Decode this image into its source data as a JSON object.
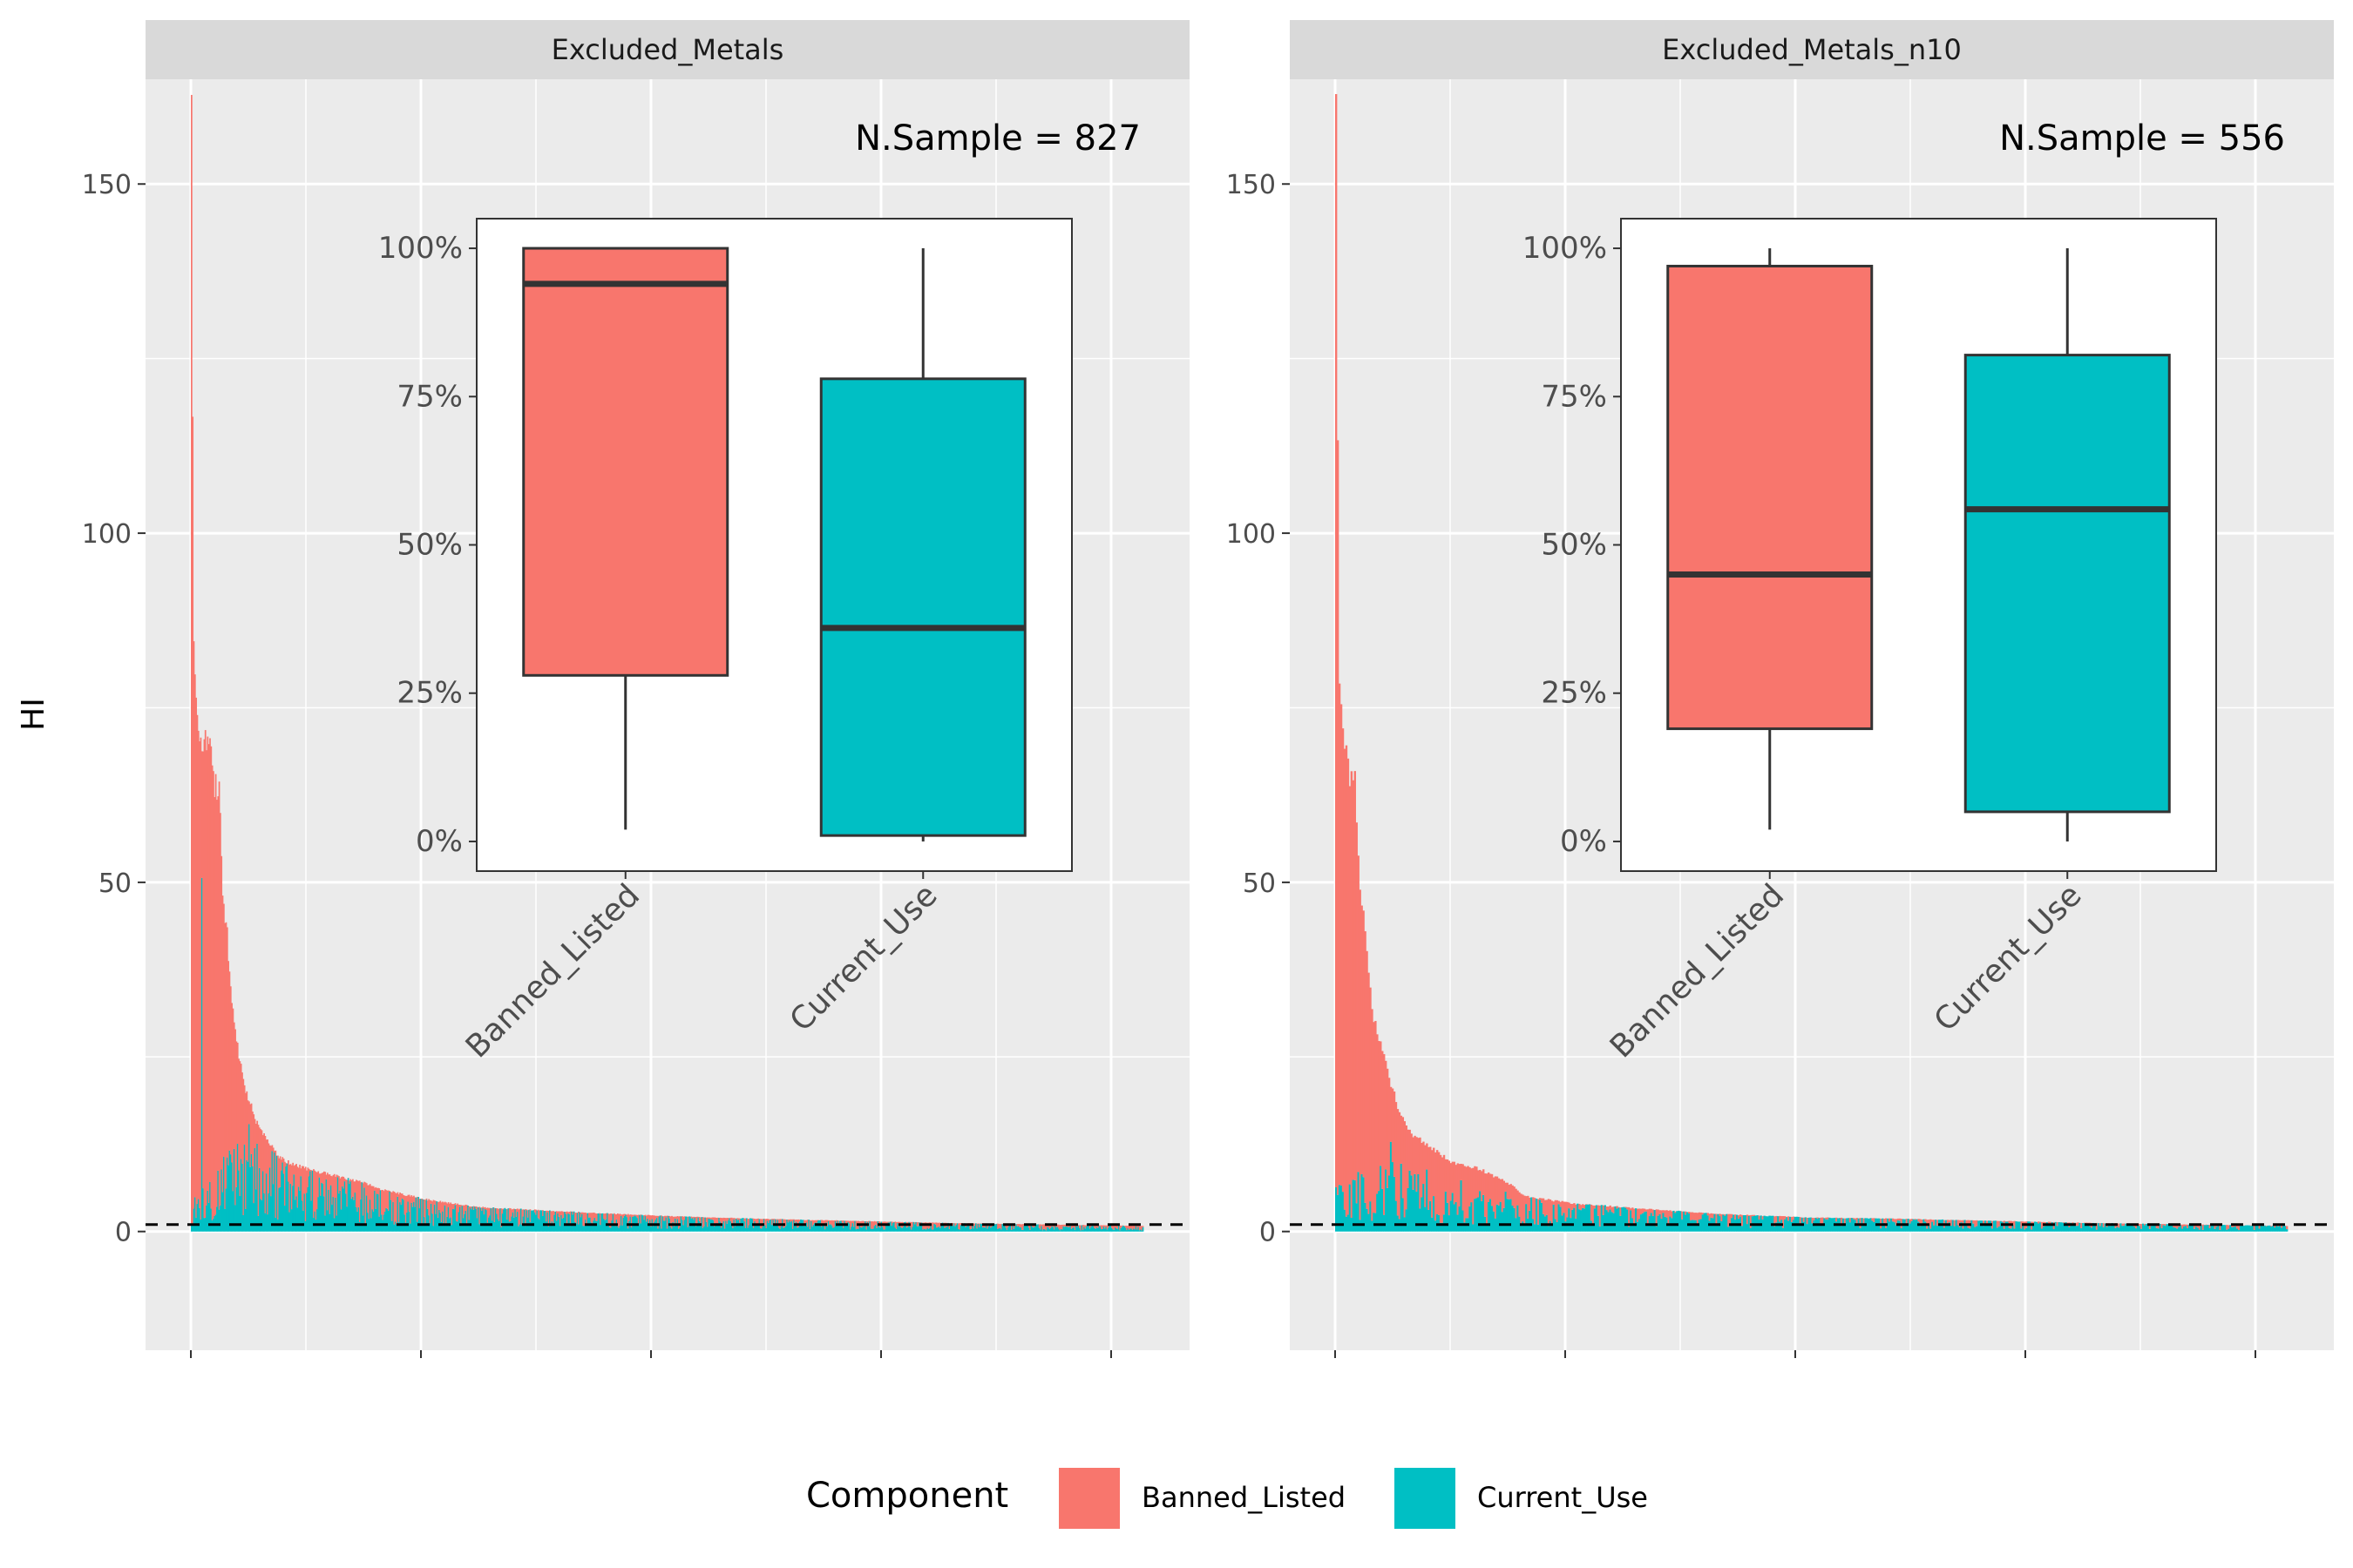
{
  "figure": {
    "y_axis_label": "HI",
    "legend": {
      "title": "Component",
      "items": [
        {
          "label": "Banned_Listed",
          "color": "#F8766D"
        },
        {
          "label": "Current_Use",
          "color": "#00BFC4"
        }
      ]
    }
  },
  "chart_data": [
    {
      "type": "bar",
      "stacked": true,
      "facet_title": "Excluded_Metals",
      "annotation": "N.Sample = 827",
      "n_samples": 827,
      "ylabel": "HI",
      "ylim": [
        -17,
        165
      ],
      "y_ticks": [
        0,
        50,
        100,
        150
      ],
      "reference_line_y": 1,
      "series": [
        {
          "name": "Banned_Listed",
          "color": "#F8766D",
          "description": "HI per sample sorted descending; max about 165"
        },
        {
          "name": "Current_Use",
          "color": "#00BFC4",
          "description": "mostly below 13"
        }
      ],
      "total_profile": [
        [
          0,
          165
        ],
        [
          0.002,
          88
        ],
        [
          0.004,
          80
        ],
        [
          0.006,
          73
        ],
        [
          0.01,
          71
        ],
        [
          0.015,
          70
        ],
        [
          0.02,
          69
        ],
        [
          0.024,
          64
        ],
        [
          0.03,
          63
        ],
        [
          0.033,
          46
        ],
        [
          0.037,
          45
        ],
        [
          0.04,
          36
        ],
        [
          0.045,
          30
        ],
        [
          0.05,
          25
        ],
        [
          0.055,
          21
        ],
        [
          0.06,
          19
        ],
        [
          0.065,
          17
        ],
        [
          0.07,
          15
        ],
        [
          0.08,
          13
        ],
        [
          0.09,
          11
        ],
        [
          0.1,
          10
        ],
        [
          0.12,
          9
        ],
        [
          0.15,
          8
        ],
        [
          0.18,
          7
        ],
        [
          0.2,
          6
        ],
        [
          0.25,
          4.5
        ],
        [
          0.3,
          3.5
        ],
        [
          0.4,
          2.8
        ],
        [
          0.5,
          2.2
        ],
        [
          0.6,
          1.8
        ],
        [
          0.7,
          1.5
        ],
        [
          0.8,
          1.2
        ],
        [
          0.9,
          1
        ],
        [
          1,
          0.8
        ]
      ],
      "current_use_levels": [
        [
          0,
          3
        ],
        [
          0.05,
          8
        ],
        [
          0.1,
          6
        ],
        [
          0.2,
          3.5
        ],
        [
          0.3,
          2.5
        ],
        [
          0.5,
          1.5
        ],
        [
          0.7,
          1
        ],
        [
          1,
          0.5
        ]
      ],
      "inset_boxplot": {
        "type": "box",
        "categories": [
          "Banned_Listed",
          "Current_Use"
        ],
        "y_ticks": [
          "0%",
          "25%",
          "50%",
          "75%",
          "100%"
        ],
        "ylim": [
          -0.05,
          1.05
        ],
        "boxes": [
          {
            "category": "Banned_Listed",
            "min": 0.02,
            "q1": 0.28,
            "median": 0.94,
            "q3": 1.0,
            "max": 1.0,
            "color": "#F8766D"
          },
          {
            "category": "Current_Use",
            "min": 0.0,
            "q1": 0.01,
            "median": 0.36,
            "q3": 0.78,
            "max": 1.0,
            "color": "#00BFC4"
          }
        ]
      }
    },
    {
      "type": "bar",
      "stacked": true,
      "facet_title": "Excluded_Metals_n10",
      "annotation": "N.Sample = 556",
      "n_samples": 556,
      "ylabel": "HI",
      "ylim": [
        -17,
        165
      ],
      "y_ticks": [
        0,
        50,
        100,
        150
      ],
      "reference_line_y": 1,
      "series": [
        {
          "name": "Banned_Listed",
          "color": "#F8766D",
          "description": "HI per sample sorted descending; max about 165"
        },
        {
          "name": "Current_Use",
          "color": "#00BFC4",
          "description": "mostly below 8"
        }
      ],
      "total_profile": [
        [
          0,
          165
        ],
        [
          0.003,
          80
        ],
        [
          0.006,
          72
        ],
        [
          0.01,
          70
        ],
        [
          0.015,
          65
        ],
        [
          0.02,
          64
        ],
        [
          0.025,
          50
        ],
        [
          0.03,
          45
        ],
        [
          0.035,
          35
        ],
        [
          0.04,
          30
        ],
        [
          0.05,
          25
        ],
        [
          0.06,
          20
        ],
        [
          0.07,
          16
        ],
        [
          0.08,
          14
        ],
        [
          0.1,
          12
        ],
        [
          0.12,
          10
        ],
        [
          0.15,
          9
        ],
        [
          0.18,
          7
        ],
        [
          0.2,
          5
        ],
        [
          0.25,
          4
        ],
        [
          0.3,
          3.5
        ],
        [
          0.4,
          2.5
        ],
        [
          0.5,
          2
        ],
        [
          0.6,
          1.8
        ],
        [
          0.7,
          1.5
        ],
        [
          0.8,
          1.2
        ],
        [
          0.9,
          1
        ],
        [
          1,
          0.8
        ]
      ],
      "current_use_levels": [
        [
          0,
          4
        ],
        [
          0.05,
          6
        ],
        [
          0.1,
          5
        ],
        [
          0.2,
          3
        ],
        [
          0.3,
          2.5
        ],
        [
          0.5,
          1.8
        ],
        [
          0.7,
          1.2
        ],
        [
          1,
          0.7
        ]
      ],
      "inset_boxplot": {
        "type": "box",
        "categories": [
          "Banned_Listed",
          "Current_Use"
        ],
        "y_ticks": [
          "0%",
          "25%",
          "50%",
          "75%",
          "100%"
        ],
        "ylim": [
          -0.05,
          1.05
        ],
        "boxes": [
          {
            "category": "Banned_Listed",
            "min": 0.02,
            "q1": 0.19,
            "median": 0.45,
            "q3": 0.97,
            "max": 1.0,
            "color": "#F8766D"
          },
          {
            "category": "Current_Use",
            "min": 0.0,
            "q1": 0.05,
            "median": 0.56,
            "q3": 0.82,
            "max": 1.0,
            "color": "#00BFC4"
          }
        ]
      }
    }
  ]
}
